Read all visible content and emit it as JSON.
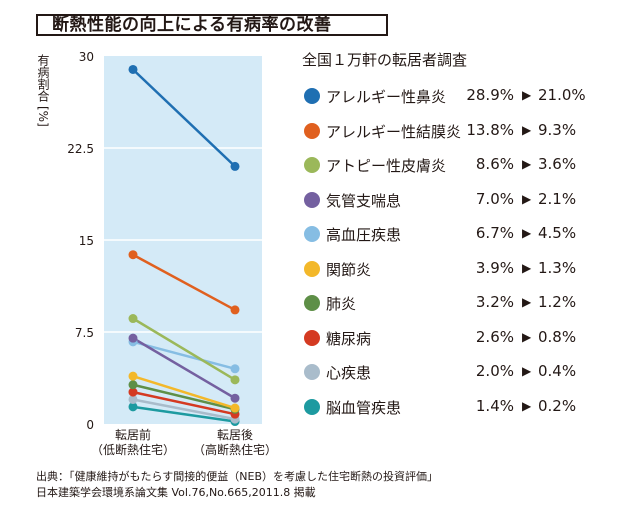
{
  "title": "断熱性能の向上による有病率の改善",
  "survey_label": "全国１万軒の転居者調査",
  "arrow_glyph": "▶",
  "chart_data": {
    "type": "line",
    "title": "断熱性能の向上による有病率の改善",
    "ylabel": "有病割合",
    "ylabel_unit": "[%]",
    "ylim": [
      0,
      30
    ],
    "yticks": [
      0,
      7.5,
      15,
      22.5,
      30
    ],
    "ytick_labels": [
      "0",
      "7.5",
      "15",
      "22.5",
      "30"
    ],
    "grid": true,
    "legend_position": "right",
    "categories": [
      {
        "line1": "転居前",
        "line2": "（低断熱住宅）"
      },
      {
        "line1": "転居後",
        "line2": "（高断熱住宅）"
      }
    ],
    "series": [
      {
        "name": "アレルギー性鼻炎",
        "color": "#1f6fb2",
        "values": [
          28.9,
          21.0
        ],
        "before_label": "28.9%",
        "after_label": "21.0%"
      },
      {
        "name": "アレルギー性結膜炎",
        "color": "#e0601f",
        "values": [
          13.8,
          9.3
        ],
        "before_label": "13.8%",
        "after_label": "9.3%"
      },
      {
        "name": "アトピー性皮膚炎",
        "color": "#9bb85a",
        "values": [
          8.6,
          3.6
        ],
        "before_label": "8.6%",
        "after_label": "3.6%"
      },
      {
        "name": "気管支喘息",
        "color": "#7460a0",
        "values": [
          7.0,
          2.1
        ],
        "before_label": "7.0%",
        "after_label": "2.1%"
      },
      {
        "name": "高血圧疾患",
        "color": "#86bde3",
        "values": [
          6.7,
          4.5
        ],
        "before_label": "6.7%",
        "after_label": "4.5%"
      },
      {
        "name": "関節炎",
        "color": "#f3b82a",
        "values": [
          3.9,
          1.3
        ],
        "before_label": "3.9%",
        "after_label": "1.3%"
      },
      {
        "name": "肺炎",
        "color": "#5e8f47",
        "values": [
          3.2,
          1.2
        ],
        "before_label": "3.2%",
        "after_label": "1.2%"
      },
      {
        "name": "糖尿病",
        "color": "#d43a22",
        "values": [
          2.6,
          0.8
        ],
        "before_label": "2.6%",
        "after_label": "0.8%"
      },
      {
        "name": "心疾患",
        "color": "#a9bccb",
        "values": [
          2.0,
          0.4
        ],
        "before_label": "2.0%",
        "after_label": "0.4%"
      },
      {
        "name": "脳血管疾患",
        "color": "#1d9aa0",
        "values": [
          1.4,
          0.2
        ],
        "before_label": "1.4%",
        "after_label": "0.2%"
      }
    ]
  },
  "source": {
    "line1": "出典：「健康維持がもたらす間接的便益（NEB）を考慮した住宅断熱の投資評価」",
    "line2": "日本建築学会環境系論文集 Vol.76,No.665,2011.8 掲載"
  }
}
